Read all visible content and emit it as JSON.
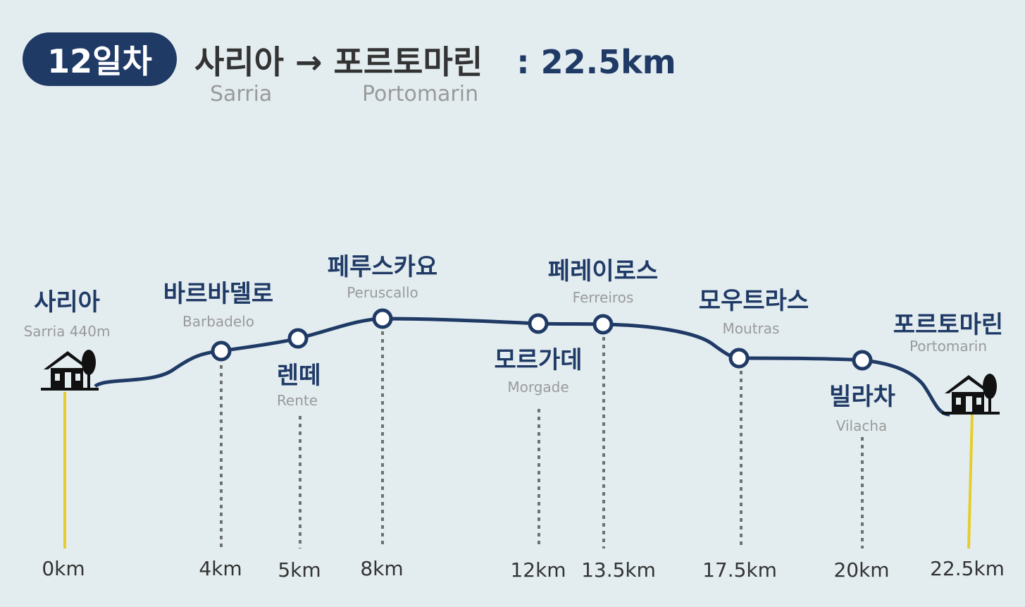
{
  "header": {
    "day": "12일차",
    "start": "사리아",
    "arrow": "→",
    "end": "포르토마린",
    "separator": ":",
    "distance": "22.5km",
    "start_en": "Sarria",
    "end_en": "Portomarin"
  },
  "colors": {
    "route": "#203a66",
    "badge": "#203a66",
    "start_end_line": "#e6cd2a",
    "dotted": "#707070",
    "background": "#e3edf0"
  },
  "stops": [
    {
      "id": "sarria",
      "kr": "사리아",
      "en": "Sarria 440m",
      "km": "0km",
      "icon": "house-icon"
    },
    {
      "id": "barbadelo",
      "kr": "바르바델로",
      "en": "Barbadelo",
      "km": "4km"
    },
    {
      "id": "rente",
      "kr": "렌떼",
      "en": "Rente",
      "km": "5km"
    },
    {
      "id": "peruscallo",
      "kr": "페루스카요",
      "en": "Peruscallo",
      "km": "8km"
    },
    {
      "id": "morgade",
      "kr": "모르가데",
      "en": "Morgade",
      "km": "12km"
    },
    {
      "id": "ferreiros",
      "kr": "페레이로스",
      "en": "Ferreiros",
      "km": "13.5km"
    },
    {
      "id": "moutras",
      "kr": "모우트라스",
      "en": "Moutras",
      "km": "17.5km"
    },
    {
      "id": "vilacha",
      "kr": "빌라차",
      "en": "Vilacha",
      "km": "20km"
    },
    {
      "id": "portomarin",
      "kr": "포르토마린",
      "en": "Portomarin",
      "km": "22.5km",
      "icon": "house-icon"
    }
  ]
}
